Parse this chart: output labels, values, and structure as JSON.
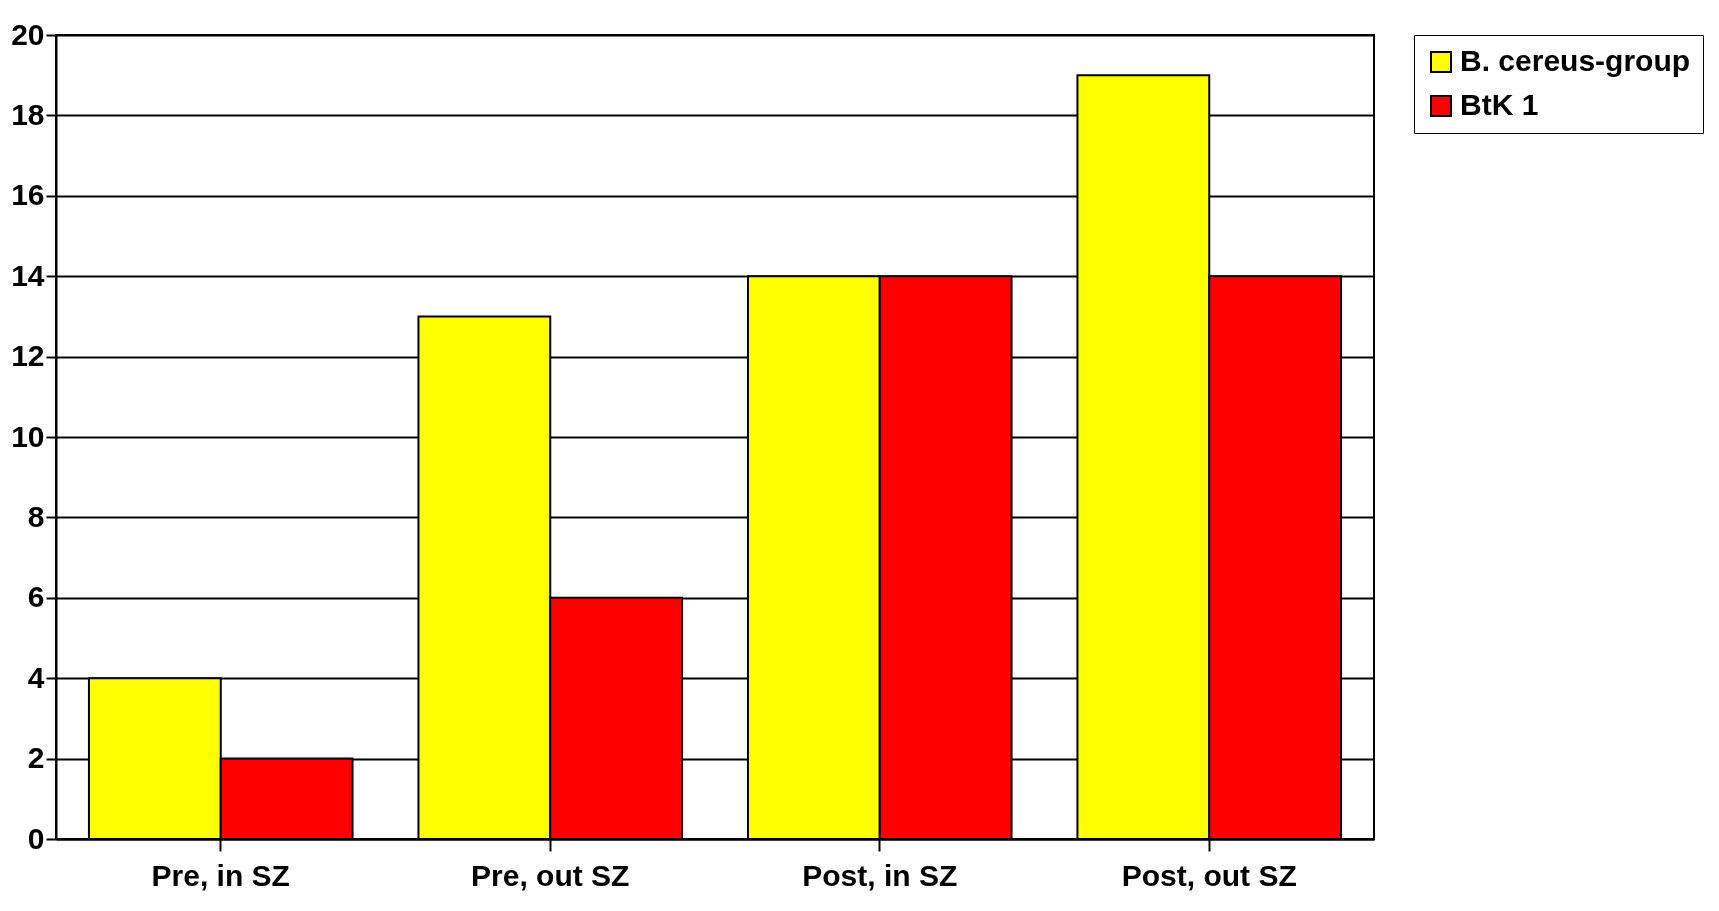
{
  "chart_data": {
    "type": "bar",
    "categories": [
      "Pre, in SZ",
      "Pre, out SZ",
      "Post, in SZ",
      "Post, out SZ"
    ],
    "series": [
      {
        "name": "B. cereus-group",
        "color": "#ffff00",
        "values": [
          4,
          13,
          14,
          19
        ]
      },
      {
        "name": "BtK 1",
        "color": "#ff0000",
        "values": [
          2,
          6,
          14,
          14
        ]
      }
    ],
    "ylim": [
      0,
      20
    ],
    "yticks": [
      0,
      2,
      4,
      6,
      8,
      10,
      12,
      14,
      16,
      18,
      20
    ],
    "grid": "y",
    "legend": "right"
  }
}
